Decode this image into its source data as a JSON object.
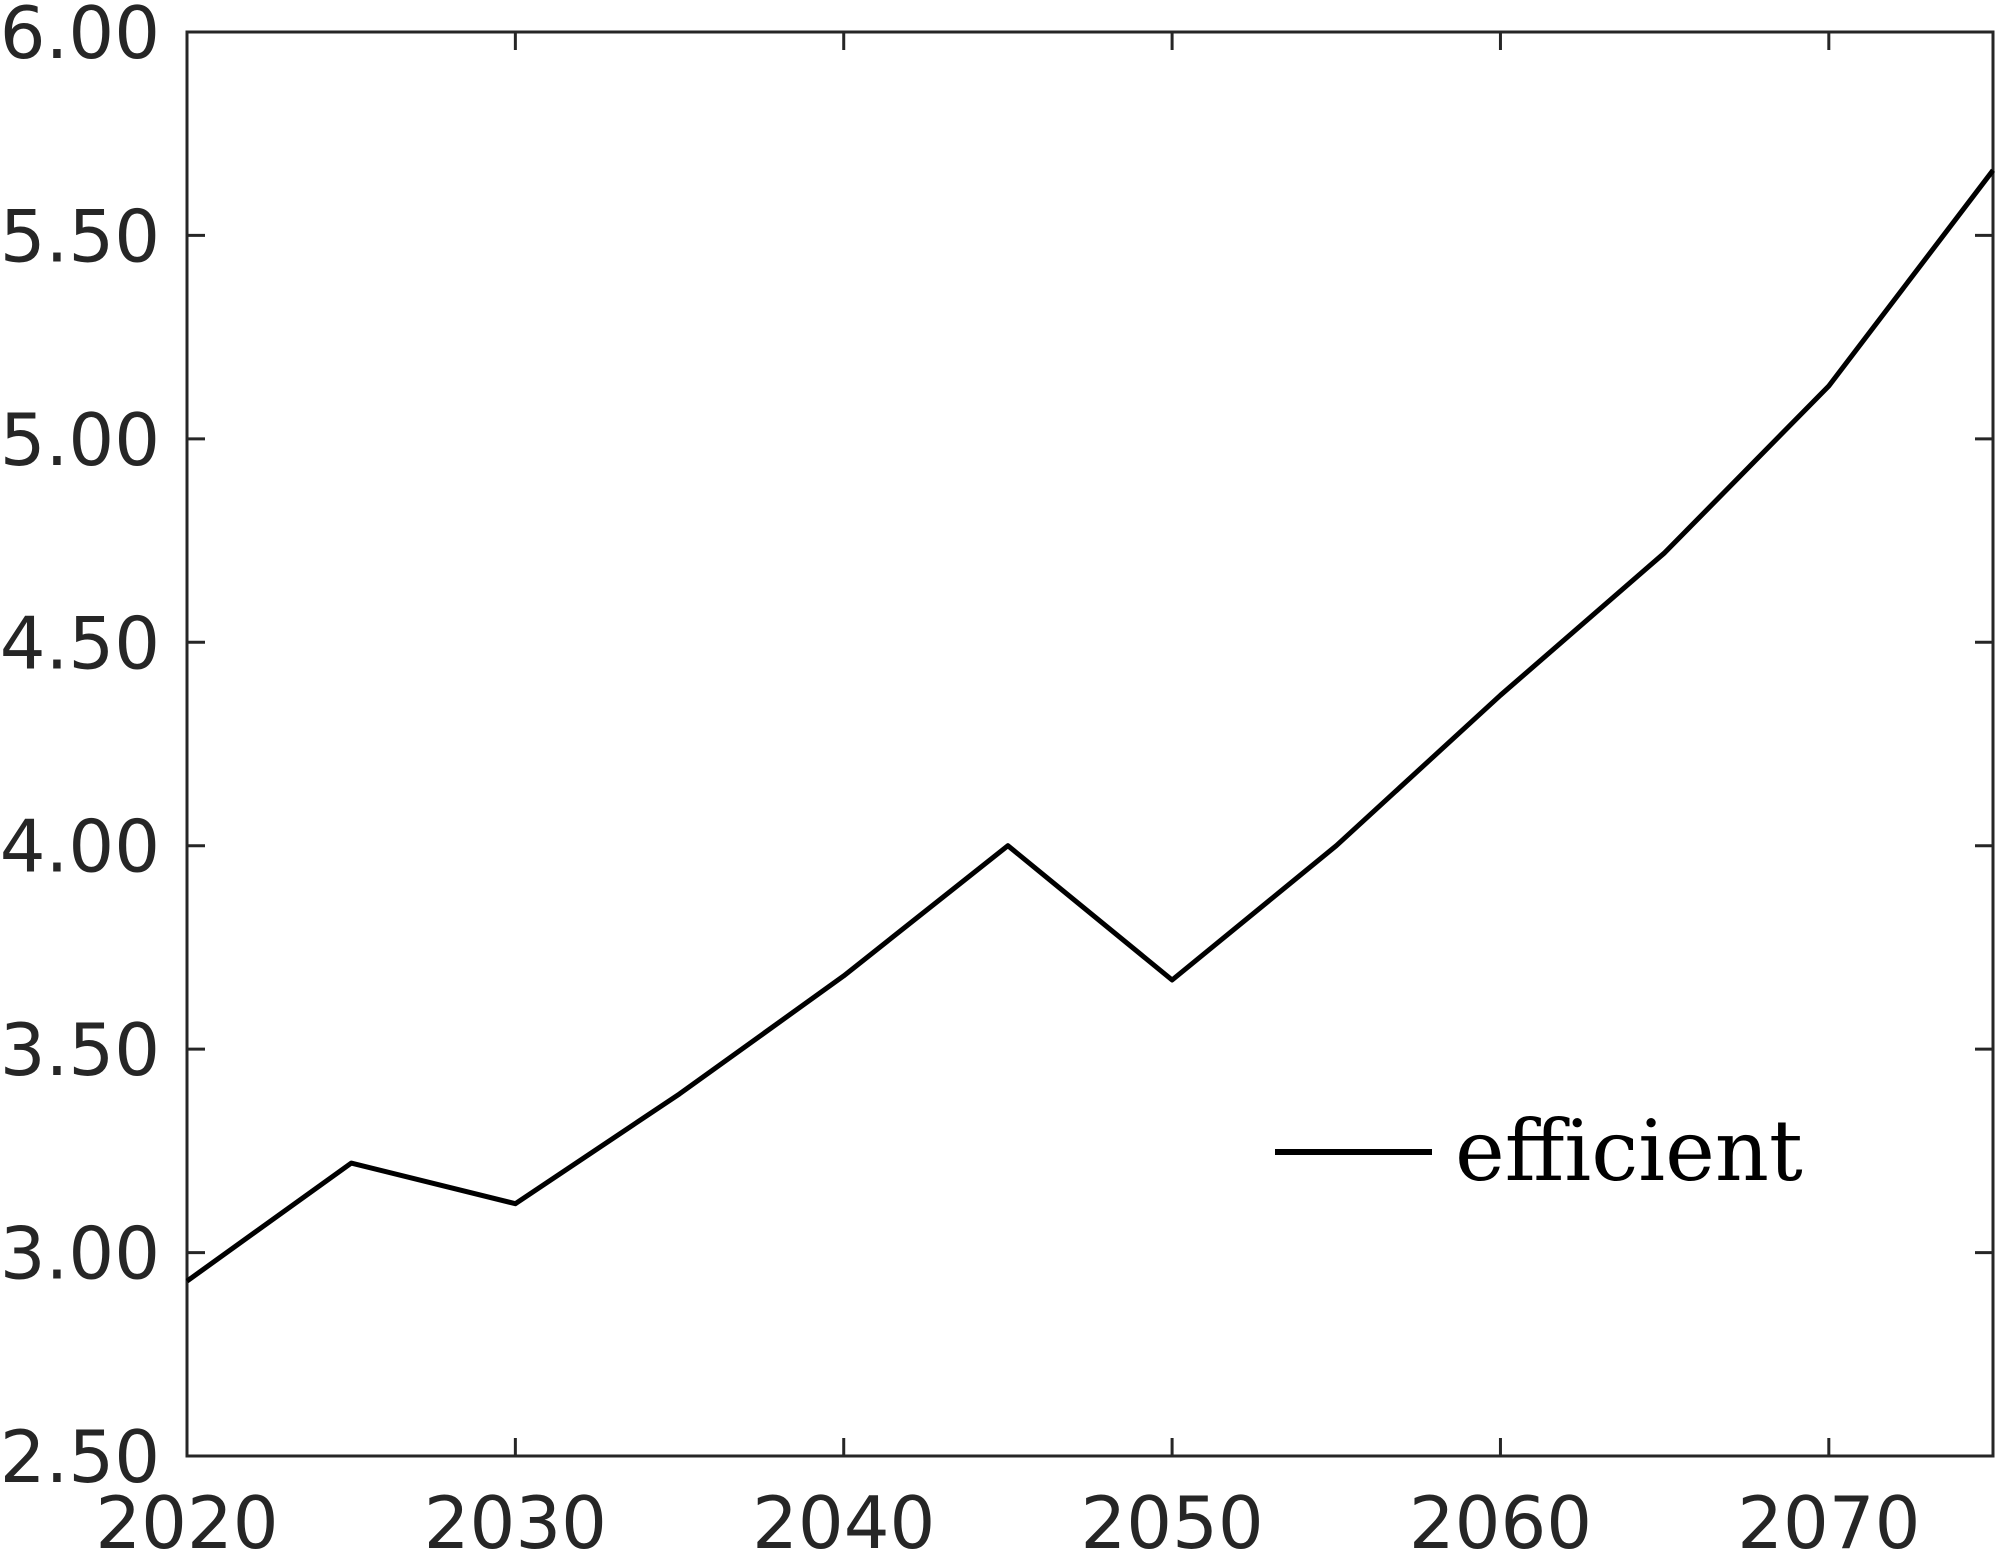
{
  "chart_data": {
    "type": "line",
    "title": "",
    "xlabel": "",
    "ylabel": "",
    "xlim": [
      2020,
      2075
    ],
    "ylim": [
      2.5,
      6.0
    ],
    "x_ticks": [
      2020,
      2030,
      2040,
      2050,
      2060,
      2070
    ],
    "x_tick_labels": [
      "2020",
      "2030",
      "2040",
      "2050",
      "2060",
      "2070"
    ],
    "y_ticks": [
      2.5,
      3.0,
      3.5,
      4.0,
      4.5,
      5.0,
      5.5,
      6.0
    ],
    "y_tick_labels": [
      "2.50",
      "3.00",
      "3.50",
      "4.00",
      "4.50",
      "5.00",
      "5.50",
      "6.00"
    ],
    "grid": false,
    "legend_position": "lower-right",
    "series": [
      {
        "name": "efficient",
        "color": "#000000",
        "x": [
          2020,
          2025,
          2030,
          2035,
          2040,
          2045,
          2050,
          2055,
          2060,
          2065,
          2070,
          2075
        ],
        "values": [
          2.93,
          3.22,
          3.12,
          3.39,
          3.68,
          4.0,
          3.67,
          4.0,
          4.37,
          4.72,
          5.13,
          5.66
        ]
      }
    ]
  }
}
